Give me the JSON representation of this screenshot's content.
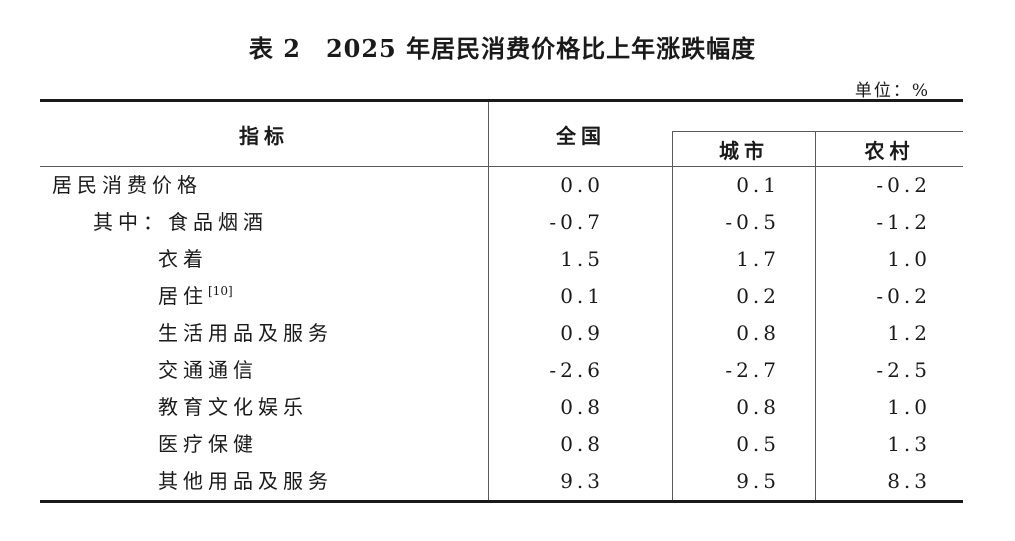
{
  "page": {
    "title": "表 2　2025 年居民消费价格比上年涨跌幅度",
    "unit_label": "单位：%"
  },
  "table": {
    "columns": {
      "indicator": "指标",
      "national": "全国",
      "urban": "城市",
      "rural": "农村"
    },
    "rows": [
      {
        "label": "居民消费价格",
        "sup": "",
        "indent": 0,
        "national": "0.0",
        "urban": "0.1",
        "rural": "-0.2"
      },
      {
        "label": "其中：食品烟酒",
        "sup": "",
        "indent": 1,
        "national": "-0.7",
        "urban": "-0.5",
        "rural": "-1.2"
      },
      {
        "label": "衣着",
        "sup": "",
        "indent": 2,
        "national": "1.5",
        "urban": "1.7",
        "rural": "1.0"
      },
      {
        "label": "居住",
        "sup": "[10]",
        "indent": 2,
        "national": "0.1",
        "urban": "0.2",
        "rural": "-0.2"
      },
      {
        "label": "生活用品及服务",
        "sup": "",
        "indent": 2,
        "national": "0.9",
        "urban": "0.8",
        "rural": "1.2"
      },
      {
        "label": "交通通信",
        "sup": "",
        "indent": 2,
        "national": "-2.6",
        "urban": "-2.7",
        "rural": "-2.5"
      },
      {
        "label": "教育文化娱乐",
        "sup": "",
        "indent": 2,
        "national": "0.8",
        "urban": "0.8",
        "rural": "1.0"
      },
      {
        "label": "医疗保健",
        "sup": "",
        "indent": 2,
        "national": "0.8",
        "urban": "0.5",
        "rural": "1.3"
      },
      {
        "label": "其他用品及服务",
        "sup": "",
        "indent": 2,
        "national": "9.3",
        "urban": "9.5",
        "rural": "8.3"
      }
    ]
  },
  "colors": {
    "background": "#ffffff",
    "text": "#1a1a1a",
    "thick_rule": "#1a1a1a",
    "thin_rule": "#5a5a5a"
  }
}
